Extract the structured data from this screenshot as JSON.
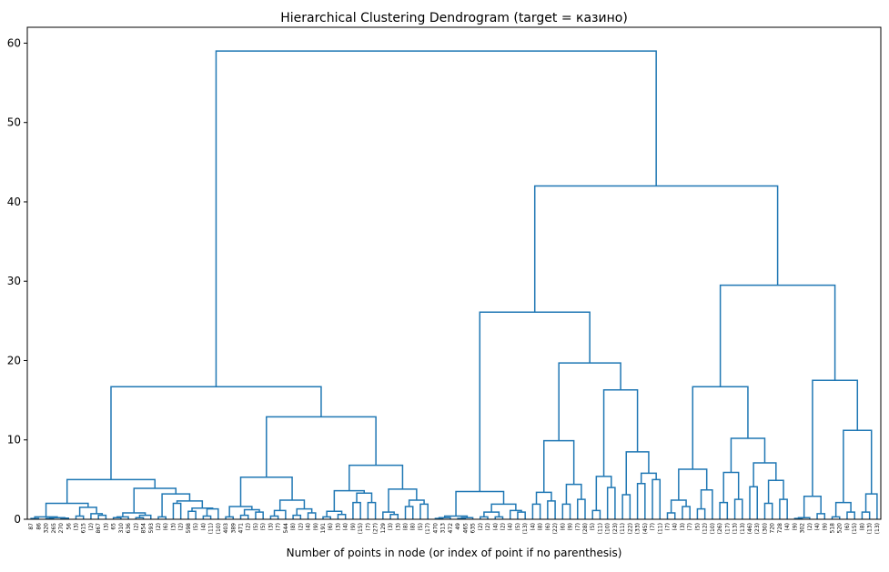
{
  "chart_data": {
    "type": "dendrogram",
    "title": "Hierarchical Clustering Dendrogram (target = казино)",
    "x_label": "Number of points in node (or index of point if no parenthesis)",
    "color": "#1f77b4",
    "ylim": [
      0,
      62
    ],
    "yticks": [
      0,
      10,
      20,
      30,
      40,
      50,
      60
    ],
    "leaves": [
      "87",
      "86",
      "320",
      "265",
      "270",
      "56",
      "(3)",
      "615",
      "(2)",
      "867",
      "(3)",
      "65",
      "310",
      "636",
      "(2)",
      "854",
      "593",
      "(2)",
      "(6)",
      "(3)",
      "(2)",
      "598",
      "(5)",
      "(4)",
      "(11)",
      "(10)",
      "403",
      "389",
      "471",
      "(2)",
      "(5)",
      "(5)",
      "(3)",
      "(7)",
      "544",
      "(8)",
      "(2)",
      "(4)",
      "(9)",
      "191",
      "(6)",
      "(3)",
      "(4)",
      "(9)",
      "(15)",
      "(7)",
      "(27)",
      "129",
      "(3)",
      "(3)",
      "(8)",
      "(8)",
      "(5)",
      "(17)",
      "470",
      "313",
      "472",
      "49",
      "465",
      "635",
      "(2)",
      "(2)",
      "(4)",
      "(2)",
      "(4)",
      "(5)",
      "(13)",
      "(4)",
      "(8)",
      "(6)",
      "(22)",
      "(6)",
      "(9)",
      "(7)",
      "(28)",
      "(5)",
      "(11)",
      "(10)",
      "(23)",
      "(11)",
      "(22)",
      "(33)",
      "(45)",
      "(7)",
      "(11)",
      "(7)",
      "(4)",
      "(3)",
      "(7)",
      "(5)",
      "(12)",
      "(10)",
      "(26)",
      "(17)",
      "(13)",
      "(13)",
      "(46)",
      "(23)",
      "(30)",
      "720",
      "728",
      "(4)",
      "(9)",
      "302",
      "(2)",
      "(4)",
      "(9)",
      "518",
      "520",
      "(6)",
      "(15)",
      "(8)",
      "(13)",
      "(13)"
    ],
    "tree": [
      59.0,
      [
        16.7,
        [
          5.0,
          [
            2.0,
            [
              0.3,
              [
                0.1,
                0,
                1
              ],
              [
                0.2,
                [
                  0.1,
                  2,
                  3
                ],
                [
                  0.15,
                  4,
                  5
                ]
              ]
            ],
            [
              1.5,
              [
                0.4,
                6,
                7
              ],
              [
                0.7,
                8,
                [
                  0.5,
                  9,
                  10
                ]
              ]
            ]
          ],
          [
            3.9,
            [
              0.8,
              [
                0.3,
                [
                  0.2,
                  11,
                  12
                ],
                13
              ],
              [
                0.5,
                [
                  0.2,
                  14,
                  15
                ],
                16
              ]
            ],
            [
              3.2,
              [
                0.3,
                17,
                18
              ],
              [
                2.3,
                [
                  2.0,
                  19,
                  20
                ],
                [
                  1.4,
                  [
                    1.0,
                    21,
                    22
                  ],
                  [
                    1.3,
                    [
                      0.4,
                      23,
                      24
                    ],
                    25
                  ]
                ]
              ]
            ]
          ]
        ],
        [
          12.9,
          [
            5.3,
            [
              1.6,
              [
                0.3,
                26,
                27
              ],
              [
                1.2,
                [
                  0.5,
                  28,
                  29
                ],
                [
                  0.9,
                  30,
                  31
                ]
              ]
            ],
            [
              2.4,
              [
                1.1,
                [
                  0.4,
                  32,
                  33
                ],
                34
              ],
              [
                1.3,
                [
                  0.5,
                  35,
                  36
                ],
                [
                  0.8,
                  37,
                  38
                ]
              ]
            ]
          ],
          [
            6.8,
            [
              3.6,
              [
                1.0,
                [
                  0.3,
                  39,
                  40
                ],
                [
                  0.6,
                  41,
                  42
                ]
              ],
              [
                3.3,
                [
                  2.1,
                  43,
                  44
                ],
                [
                  2.1,
                  45,
                  46
                ]
              ]
            ],
            [
              3.8,
              [
                0.9,
                47,
                [
                  0.6,
                  48,
                  49
                ]
              ],
              [
                2.4,
                [
                  1.6,
                  50,
                  51
                ],
                [
                  1.9,
                  52,
                  53
                ]
              ]
            ]
          ]
        ]
      ],
      [
        42.0,
        [
          26.1,
          [
            3.5,
            [
              0.4,
              [
                0.2,
                [
                  0.1,
                  54,
                  55
                ],
                56
              ],
              [
                0.2,
                [
                  0.1,
                  57,
                  58
                ],
                59
              ]
            ],
            [
              1.9,
              [
                0.9,
                [
                  0.3,
                  60,
                  61
                ],
                [
                  0.3,
                  62,
                  63
                ]
              ],
              [
                1.1,
                64,
                [
                  0.9,
                  65,
                  66
                ]
              ]
            ]
          ],
          [
            19.7,
            [
              9.9,
              [
                3.4,
                [
                  1.9,
                  67,
                  68
                ],
                [
                  2.3,
                  69,
                  70
                ]
              ],
              [
                4.4,
                [
                  1.9,
                  71,
                  72
                ],
                [
                  2.5,
                  73,
                  74
                ]
              ]
            ],
            [
              16.3,
              [
                5.4,
                [
                  1.1,
                  75,
                  76
                ],
                [
                  4.0,
                  77,
                  78
                ]
              ],
              [
                8.5,
                [
                  3.1,
                  79,
                  80
                ],
                [
                  5.8,
                  [
                    4.5,
                    81,
                    82
                  ],
                  [
                    5.0,
                    83,
                    84
                  ]
                ]
              ]
            ]
          ]
        ],
        [
          29.5,
          [
            16.7,
            [
              6.3,
              [
                2.4,
                [
                  0.8,
                  85,
                  86
                ],
                [
                  1.6,
                  87,
                  88
                ]
              ],
              [
                3.7,
                [
                  1.3,
                  89,
                  90
                ],
                91
              ]
            ],
            [
              10.2,
              [
                5.9,
                [
                  2.1,
                  92,
                  93
                ],
                [
                  2.5,
                  94,
                  95
                ]
              ],
              [
                7.1,
                [
                  4.1,
                  96,
                  97
                ],
                [
                  4.9,
                  [
                    2.0,
                    98,
                    99
                  ],
                  [
                    2.5,
                    100,
                    101
                  ]
                ]
              ]
            ]
          ],
          [
            17.5,
            [
              2.9,
              [
                0.2,
                [
                  0.1,
                  102,
                  103
                ],
                104
              ],
              [
                0.7,
                105,
                106
              ]
            ],
            [
              11.2,
              [
                2.1,
                [
                  0.3,
                  107,
                  108
                ],
                [
                  0.9,
                  109,
                  110
                ]
              ],
              [
                3.2,
                [
                  0.9,
                  111,
                  112
                ],
                113
              ]
            ]
          ]
        ]
      ]
    ]
  }
}
